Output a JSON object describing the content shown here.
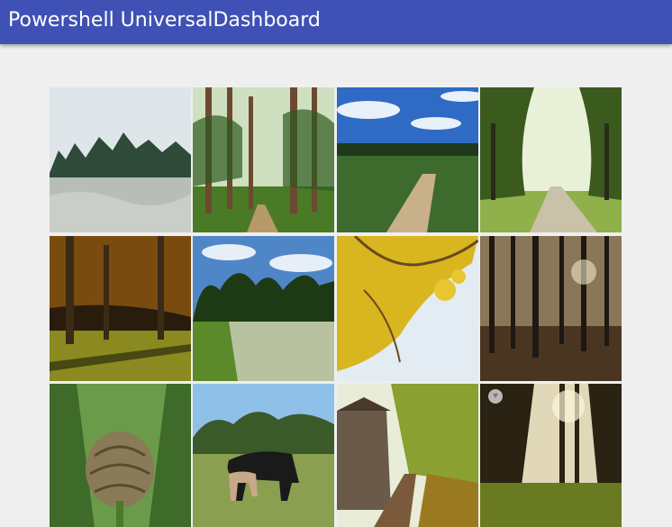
{
  "app": {
    "title": "Powershell UniversalDashboard"
  },
  "gallery": {
    "images": [
      {
        "subject": "frosty heath with pine trees",
        "colors": {
          "sky": "#dfe6ea",
          "ground": "#b7bdb8",
          "trees": "#2f4a38"
        }
      },
      {
        "subject": "tall pine forest with path",
        "colors": {
          "sky": "#cfe0c0",
          "ground": "#4a7a26",
          "trees": "#6b4a30"
        }
      },
      {
        "subject": "blue sky over heath path",
        "colors": {
          "sky": "#2f6bc4",
          "ground": "#3d6b2e",
          "trees": "#1e3a1a"
        }
      },
      {
        "subject": "green tree avenue with lane",
        "colors": {
          "sky": "#e8f0d8",
          "ground": "#8fb04a",
          "trees": "#3a5a1e"
        }
      },
      {
        "subject": "autumn larch woods in low sun",
        "colors": {
          "sky": "#2a1c0c",
          "ground": "#8a8a20",
          "trees": "#b06a10"
        }
      },
      {
        "subject": "meadow with trees and sky",
        "colors": {
          "sky": "#4f86c8",
          "ground": "#b8c2a0",
          "trees": "#1e3a14"
        }
      },
      {
        "subject": "yellow autumn leaves against sky",
        "colors": {
          "sky": "#e3ecf2",
          "ground": "#d9b520",
          "trees": "#6a4a1a"
        }
      },
      {
        "subject": "dark pine forest trunks",
        "colors": {
          "sky": "#8a7658",
          "ground": "#4a3620",
          "trees": "#1e1812"
        }
      },
      {
        "subject": "artichoke bud",
        "colors": {
          "sky": "#6a9a4a",
          "ground": "#3e6a2a",
          "trees": "#8a7a58"
        }
      },
      {
        "subject": "ponies grazing on heath",
        "colors": {
          "sky": "#8fc0e8",
          "ground": "#8aa050",
          "trees": "#3a5a2a"
        }
      },
      {
        "subject": "autumn lane by cottage",
        "colors": {
          "sky": "#e8ecd8",
          "ground": "#7a5a3a",
          "trees": "#8aa030"
        }
      },
      {
        "subject": "sunlit autumn forest",
        "colors": {
          "sky": "#e0d8b8",
          "ground": "#6a7a20",
          "trees": "#2a2212"
        }
      }
    ]
  }
}
